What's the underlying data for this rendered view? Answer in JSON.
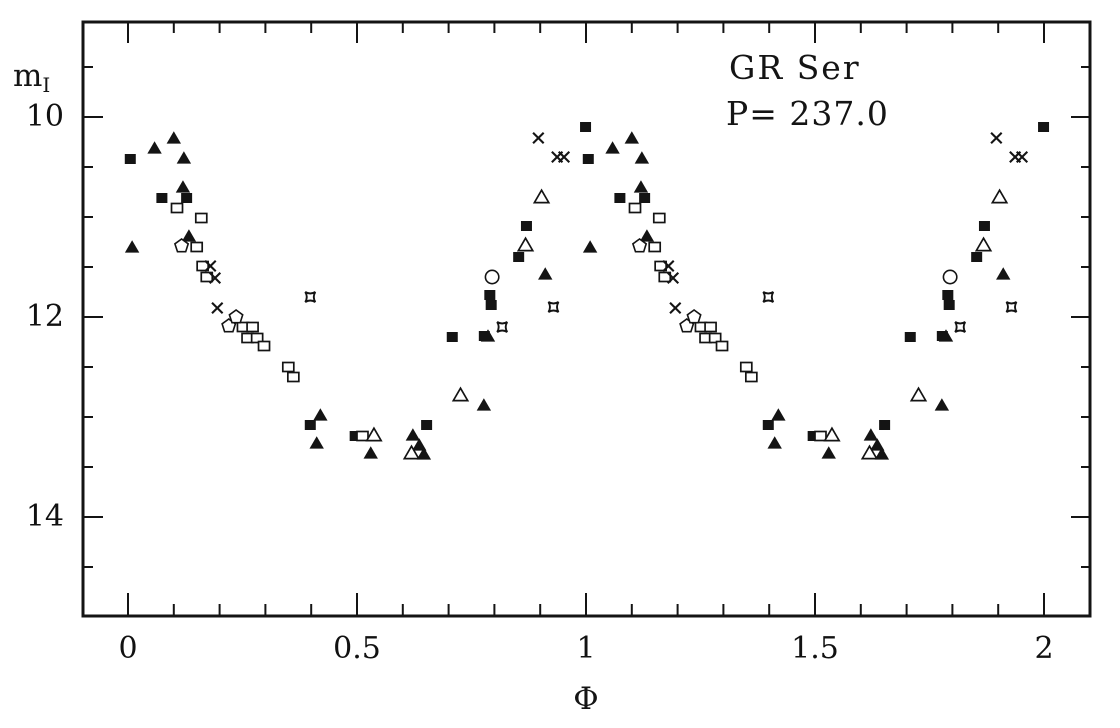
{
  "page": {
    "background": "#ffffff",
    "ink": "#141414"
  },
  "chart_data": {
    "type": "scatter",
    "title": "GR Ser",
    "annotation": "P= 237.0",
    "xlabel": "Φ",
    "ylabel": "m",
    "ylabel_subscript": "I",
    "xlim": [
      -0.1,
      2.1
    ],
    "ylim": [
      9.0,
      15.0
    ],
    "y_axis_inverted": true,
    "grid": false,
    "x_major_ticks": [
      0,
      0.5,
      1,
      1.5,
      2
    ],
    "x_tick_labels": [
      "0",
      "0.5",
      "1",
      "1.5",
      "2"
    ],
    "x_minor_step": 0.1,
    "y_major_ticks": [
      10,
      12,
      14
    ],
    "y_tick_labels": [
      "10",
      "12",
      "14"
    ],
    "y_minor_step": 0.5,
    "points_plotted_at_phase_and_phase_plus_one": true,
    "series": [
      {
        "name": "filled-square",
        "marker": "filled-square",
        "points": [
          [
            0.005,
            10.42
          ],
          [
            0.074,
            10.81
          ],
          [
            0.128,
            10.81
          ],
          [
            0.398,
            13.08
          ],
          [
            0.496,
            13.19
          ],
          [
            0.652,
            13.08
          ],
          [
            0.708,
            12.2
          ],
          [
            0.778,
            12.19
          ],
          [
            0.79,
            11.78
          ],
          [
            0.793,
            11.88
          ],
          [
            0.853,
            11.4
          ],
          [
            0.87,
            11.09
          ],
          [
            0.999,
            10.1
          ]
        ]
      },
      {
        "name": "filled-triangle",
        "marker": "filled-triangle",
        "points": [
          [
            0.009,
            11.3
          ],
          [
            0.058,
            10.31
          ],
          [
            0.1,
            10.21
          ],
          [
            0.122,
            10.41
          ],
          [
            0.12,
            10.7
          ],
          [
            0.133,
            11.19
          ],
          [
            0.42,
            12.98
          ],
          [
            0.412,
            13.26
          ],
          [
            0.53,
            13.36
          ],
          [
            0.622,
            13.18
          ],
          [
            0.636,
            13.28
          ],
          [
            0.646,
            13.37
          ],
          [
            0.777,
            12.88
          ],
          [
            0.786,
            12.19
          ],
          [
            0.911,
            11.57
          ]
        ]
      },
      {
        "name": "open-square",
        "marker": "open-square",
        "points": [
          [
            0.107,
            10.91
          ],
          [
            0.16,
            11.01
          ],
          [
            0.15,
            11.3
          ],
          [
            0.163,
            11.49
          ],
          [
            0.172,
            11.6
          ],
          [
            0.251,
            12.1
          ],
          [
            0.272,
            12.1
          ],
          [
            0.261,
            12.21
          ],
          [
            0.282,
            12.21
          ],
          [
            0.297,
            12.29
          ],
          [
            0.35,
            12.5
          ],
          [
            0.361,
            12.6
          ],
          [
            0.512,
            13.19
          ]
        ]
      },
      {
        "name": "open-triangle",
        "marker": "open-triangle",
        "points": [
          [
            0.537,
            13.18
          ],
          [
            0.619,
            13.36
          ],
          [
            0.726,
            12.78
          ],
          [
            0.868,
            11.28
          ],
          [
            0.903,
            10.8
          ]
        ]
      },
      {
        "name": "open-pentagon",
        "marker": "open-pentagon",
        "points": [
          [
            0.117,
            11.29
          ],
          [
            0.22,
            12.09
          ],
          [
            0.236,
            12.0
          ]
        ]
      },
      {
        "name": "open-circle",
        "marker": "open-circle",
        "points": [
          [
            0.795,
            11.6
          ]
        ]
      },
      {
        "name": "x-cross",
        "marker": "x-cross",
        "points": [
          [
            0.18,
            11.49
          ],
          [
            0.19,
            11.61
          ],
          [
            0.195,
            11.91
          ],
          [
            0.896,
            10.21
          ],
          [
            0.937,
            10.4
          ],
          [
            0.952,
            10.4
          ]
        ]
      },
      {
        "name": "four-point-star",
        "marker": "four-point-star",
        "points": [
          [
            0.398,
            11.8
          ],
          [
            0.817,
            12.1
          ],
          [
            0.929,
            11.9
          ]
        ]
      }
    ]
  }
}
